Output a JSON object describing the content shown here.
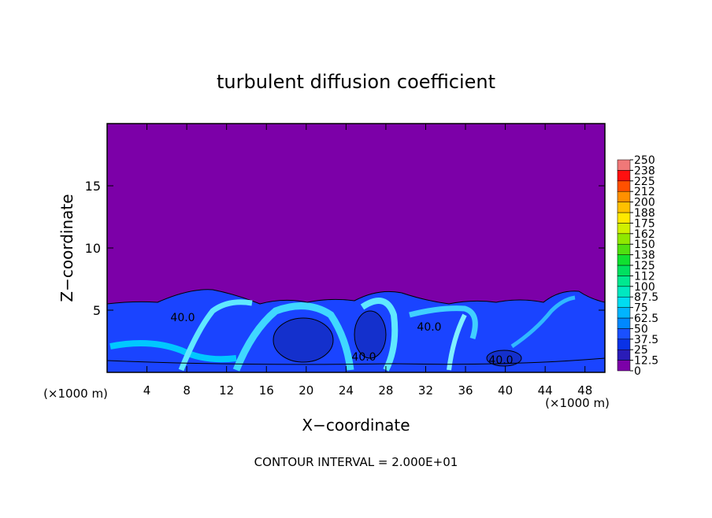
{
  "chart_data": {
    "type": "contour",
    "title": "turbulent diffusion coefficient",
    "xlabel": "X−coordinate",
    "ylabel": "Z−coordinate",
    "x_unit_label": "(×1000 m)",
    "y_unit_label": "(×1000 m)",
    "footnote": "CONTOUR INTERVAL = 2.000E+01",
    "xlim": [
      0,
      50
    ],
    "xticks": [
      4,
      8,
      12,
      16,
      20,
      24,
      28,
      32,
      36,
      40,
      44,
      48
    ],
    "ylim": [
      0,
      20
    ],
    "yticks": [
      5,
      10,
      15
    ],
    "background_color": "#7c00a8",
    "colorbar": {
      "levels": [
        0,
        12.5,
        25,
        37.5,
        50,
        62.5,
        75,
        87.5,
        100,
        112,
        125,
        138,
        150,
        162,
        175,
        188,
        200,
        212,
        225,
        238,
        250
      ],
      "colors": [
        "#7c00a8",
        "#2a1cb8",
        "#0a32e6",
        "#1a50ff",
        "#0088ff",
        "#00b4ff",
        "#00dcf0",
        "#00e8c0",
        "#00e890",
        "#00e060",
        "#10e030",
        "#50e010",
        "#90e800",
        "#d0f000",
        "#ffe800",
        "#ffc000",
        "#ff9000",
        "#ff5000",
        "#ff1010",
        "#f07878"
      ]
    },
    "contour_labels": [
      {
        "value": 40,
        "label": "40.0"
      },
      {
        "value": 40,
        "label": "40.0"
      },
      {
        "value": 40,
        "label": "40.0"
      },
      {
        "value": 40,
        "label": "40.0"
      }
    ]
  }
}
